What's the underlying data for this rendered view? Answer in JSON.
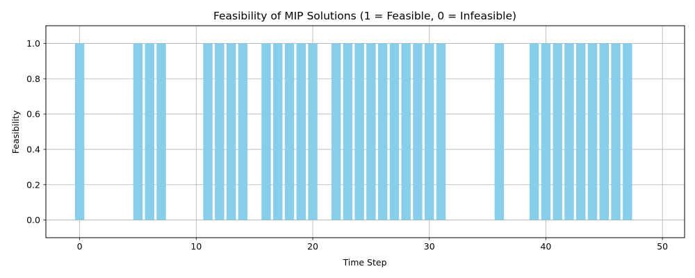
{
  "chart_data": {
    "type": "bar",
    "title": "Feasibility of MIP Solutions (1 = Feasible, 0 = Infeasible)",
    "xlabel": "Time Step",
    "ylabel": "Feasibility",
    "xlim": [
      -2.9,
      51.9
    ],
    "ylim": [
      -0.1,
      1.1
    ],
    "xticks": [
      0,
      10,
      20,
      30,
      40,
      50
    ],
    "yticks": [
      0.0,
      0.2,
      0.4,
      0.6,
      0.8,
      1.0
    ],
    "xtick_labels": [
      "0",
      "10",
      "20",
      "30",
      "40",
      "50"
    ],
    "ytick_labels": [
      "0.0",
      "0.2",
      "0.4",
      "0.6",
      "0.8",
      "1.0"
    ],
    "grid": true,
    "bar_color": "#87ceeb",
    "x": [
      0,
      1,
      2,
      3,
      4,
      5,
      6,
      7,
      8,
      9,
      10,
      11,
      12,
      13,
      14,
      15,
      16,
      17,
      18,
      19,
      20,
      21,
      22,
      23,
      24,
      25,
      26,
      27,
      28,
      29,
      30,
      31,
      32,
      33,
      34,
      35,
      36,
      37,
      38,
      39,
      40,
      41,
      42,
      43,
      44,
      45,
      46,
      47,
      48,
      49
    ],
    "values": [
      1,
      0,
      0,
      0,
      0,
      1,
      1,
      1,
      0,
      0,
      0,
      1,
      1,
      1,
      1,
      0,
      1,
      1,
      1,
      1,
      1,
      0,
      1,
      1,
      1,
      1,
      1,
      1,
      1,
      1,
      1,
      1,
      0,
      0,
      0,
      0,
      1,
      0,
      0,
      1,
      1,
      1,
      1,
      1,
      1,
      1,
      1,
      1,
      0,
      0
    ]
  }
}
